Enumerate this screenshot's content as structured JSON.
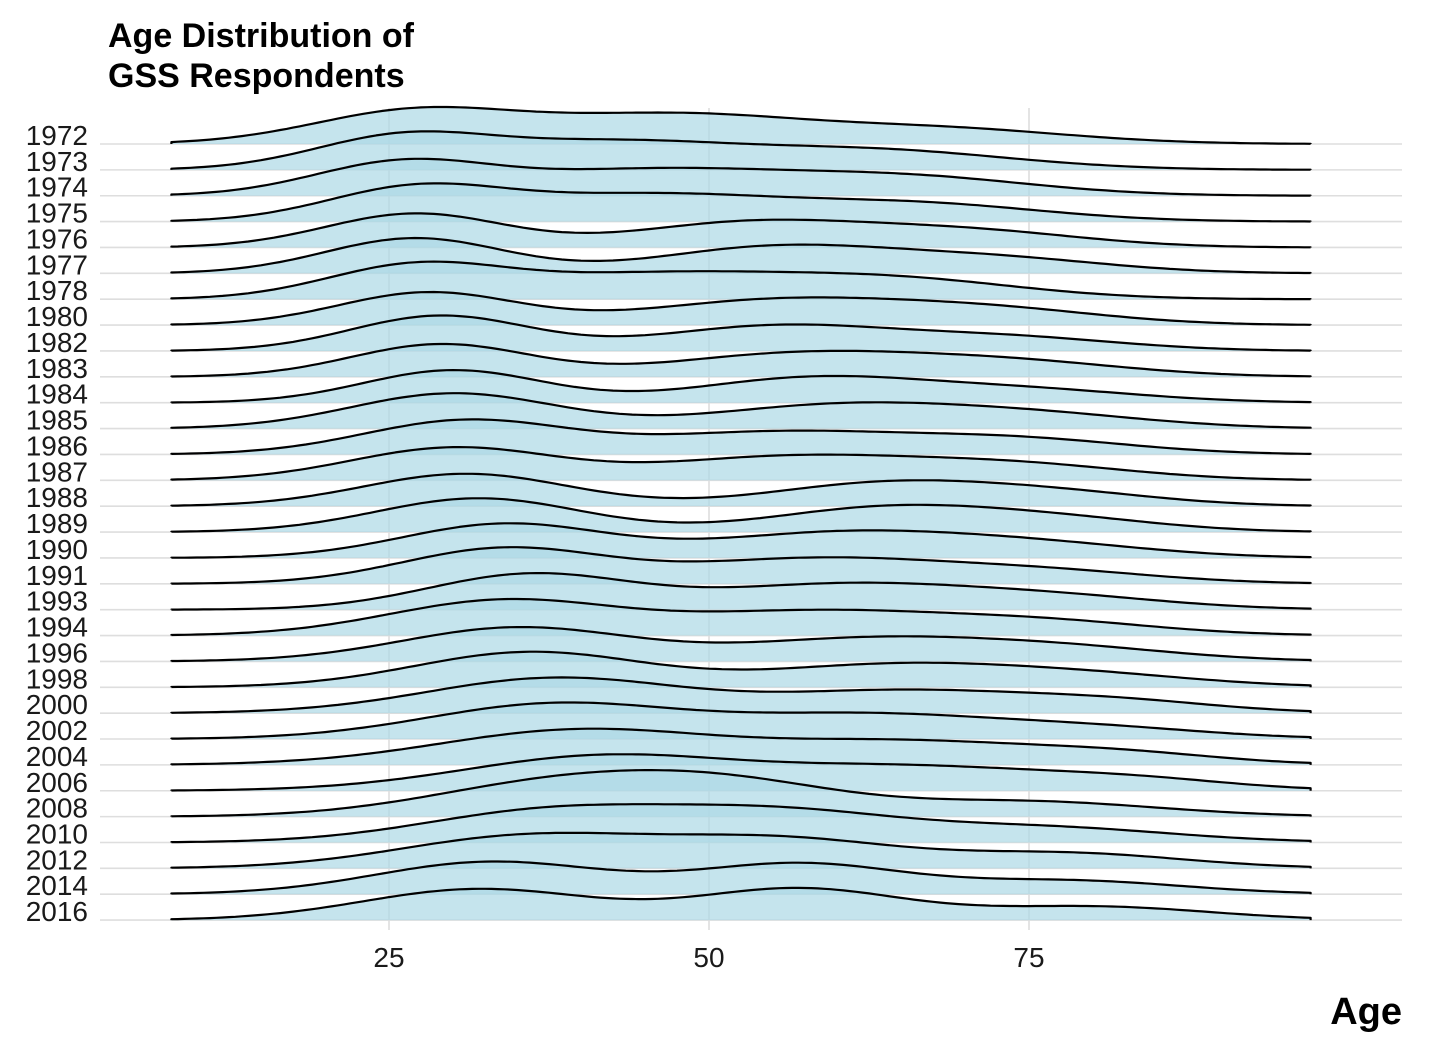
{
  "chart_data": {
    "type": "ridgeline",
    "title": [
      "Age Distribution of",
      "GSS Respondents"
    ],
    "xlabel": "Age",
    "ylabel": "",
    "x_ticks": [
      25,
      50,
      75
    ],
    "xlim": [
      3,
      100
    ],
    "density_range": [
      8,
      97
    ],
    "grid": true,
    "fill_color": "#add8e6",
    "fill_opacity": 0.7,
    "line_color": "#000000",
    "years": [
      "1972",
      "1973",
      "1974",
      "1975",
      "1976",
      "1977",
      "1978",
      "1980",
      "1982",
      "1983",
      "1984",
      "1985",
      "1986",
      "1987",
      "1988",
      "1989",
      "1990",
      "1991",
      "1993",
      "1994",
      "1996",
      "1998",
      "2000",
      "2002",
      "2004",
      "2006",
      "2008",
      "2010",
      "2012",
      "2014",
      "2016"
    ],
    "series": [
      {
        "label": "1972",
        "modes": [
          {
            "age": 27,
            "height": 1.2,
            "sd": 8
          },
          {
            "age": 47,
            "height": 1.05,
            "sd": 10
          },
          {
            "age": 68,
            "height": 0.55,
            "sd": 10
          }
        ]
      },
      {
        "label": "1973",
        "modes": [
          {
            "age": 26,
            "height": 1.2,
            "sd": 7
          },
          {
            "age": 42,
            "height": 0.9,
            "sd": 9
          },
          {
            "age": 62,
            "height": 0.75,
            "sd": 11
          }
        ]
      },
      {
        "label": "1974",
        "modes": [
          {
            "age": 26,
            "height": 1.2,
            "sd": 7
          },
          {
            "age": 45,
            "height": 0.9,
            "sd": 10
          },
          {
            "age": 65,
            "height": 0.7,
            "sd": 10
          }
        ]
      },
      {
        "label": "1975",
        "modes": [
          {
            "age": 27,
            "height": 1.2,
            "sd": 7
          },
          {
            "age": 45,
            "height": 0.95,
            "sd": 10
          },
          {
            "age": 66,
            "height": 0.65,
            "sd": 10
          }
        ]
      },
      {
        "label": "1976",
        "modes": [
          {
            "age": 27,
            "height": 1.25,
            "sd": 7
          },
          {
            "age": 53,
            "height": 0.9,
            "sd": 9
          },
          {
            "age": 70,
            "height": 0.6,
            "sd": 9
          }
        ]
      },
      {
        "label": "1977",
        "modes": [
          {
            "age": 27,
            "height": 1.3,
            "sd": 7
          },
          {
            "age": 55,
            "height": 0.95,
            "sd": 9
          },
          {
            "age": 72,
            "height": 0.55,
            "sd": 9
          }
        ]
      },
      {
        "label": "1978",
        "modes": [
          {
            "age": 27,
            "height": 1.2,
            "sd": 7
          },
          {
            "age": 45,
            "height": 0.85,
            "sd": 10
          },
          {
            "age": 64,
            "height": 0.75,
            "sd": 10
          }
        ]
      },
      {
        "label": "1980",
        "modes": [
          {
            "age": 28,
            "height": 1.2,
            "sd": 7
          },
          {
            "age": 55,
            "height": 0.9,
            "sd": 10
          },
          {
            "age": 72,
            "height": 0.55,
            "sd": 9
          }
        ]
      },
      {
        "label": "1982",
        "modes": [
          {
            "age": 29,
            "height": 1.3,
            "sd": 7
          },
          {
            "age": 55,
            "height": 0.9,
            "sd": 9
          },
          {
            "age": 73,
            "height": 0.5,
            "sd": 9
          }
        ]
      },
      {
        "label": "1983",
        "modes": [
          {
            "age": 29,
            "height": 1.2,
            "sd": 7
          },
          {
            "age": 57,
            "height": 0.85,
            "sd": 10
          },
          {
            "age": 74,
            "height": 0.5,
            "sd": 9
          }
        ]
      },
      {
        "label": "1984",
        "modes": [
          {
            "age": 30,
            "height": 1.2,
            "sd": 7
          },
          {
            "age": 58,
            "height": 0.9,
            "sd": 9
          },
          {
            "age": 75,
            "height": 0.45,
            "sd": 9
          }
        ]
      },
      {
        "label": "1985",
        "modes": [
          {
            "age": 30,
            "height": 1.3,
            "sd": 8
          },
          {
            "age": 60,
            "height": 0.85,
            "sd": 10
          },
          {
            "age": 76,
            "height": 0.45,
            "sd": 9
          }
        ]
      },
      {
        "label": "1986",
        "modes": [
          {
            "age": 31,
            "height": 1.25,
            "sd": 8
          },
          {
            "age": 55,
            "height": 0.8,
            "sd": 10
          },
          {
            "age": 74,
            "height": 0.55,
            "sd": 9
          }
        ]
      },
      {
        "label": "1987",
        "modes": [
          {
            "age": 30,
            "height": 1.2,
            "sd": 8
          },
          {
            "age": 56,
            "height": 0.85,
            "sd": 10
          },
          {
            "age": 74,
            "height": 0.55,
            "sd": 9
          }
        ]
      },
      {
        "label": "1988",
        "modes": [
          {
            "age": 31,
            "height": 1.2,
            "sd": 8
          },
          {
            "age": 64,
            "height": 0.85,
            "sd": 9
          },
          {
            "age": 78,
            "height": 0.4,
            "sd": 8
          }
        ]
      },
      {
        "label": "1989",
        "modes": [
          {
            "age": 32,
            "height": 1.25,
            "sd": 8
          },
          {
            "age": 64,
            "height": 0.9,
            "sd": 9
          },
          {
            "age": 78,
            "height": 0.4,
            "sd": 8
          }
        ]
      },
      {
        "label": "1990",
        "modes": [
          {
            "age": 34,
            "height": 1.25,
            "sd": 8
          },
          {
            "age": 60,
            "height": 0.9,
            "sd": 10
          },
          {
            "age": 76,
            "height": 0.45,
            "sd": 9
          }
        ]
      },
      {
        "label": "1991",
        "modes": [
          {
            "age": 34,
            "height": 1.3,
            "sd": 8
          },
          {
            "age": 58,
            "height": 0.9,
            "sd": 10
          },
          {
            "age": 76,
            "height": 0.45,
            "sd": 9
          }
        ]
      },
      {
        "label": "1993",
        "modes": [
          {
            "age": 36,
            "height": 1.3,
            "sd": 8
          },
          {
            "age": 60,
            "height": 0.9,
            "sd": 10
          },
          {
            "age": 77,
            "height": 0.45,
            "sd": 9
          }
        ]
      },
      {
        "label": "1994",
        "modes": [
          {
            "age": 34,
            "height": 1.3,
            "sd": 9
          },
          {
            "age": 58,
            "height": 0.85,
            "sd": 10
          },
          {
            "age": 76,
            "height": 0.5,
            "sd": 9
          }
        ]
      },
      {
        "label": "1996",
        "modes": [
          {
            "age": 35,
            "height": 1.25,
            "sd": 9
          },
          {
            "age": 62,
            "height": 0.8,
            "sd": 10
          },
          {
            "age": 78,
            "height": 0.45,
            "sd": 9
          }
        ]
      },
      {
        "label": "1998",
        "modes": [
          {
            "age": 36,
            "height": 1.3,
            "sd": 9
          },
          {
            "age": 64,
            "height": 0.8,
            "sd": 10
          },
          {
            "age": 80,
            "height": 0.4,
            "sd": 9
          }
        ]
      },
      {
        "label": "2000",
        "modes": [
          {
            "age": 38,
            "height": 1.3,
            "sd": 10
          },
          {
            "age": 65,
            "height": 0.8,
            "sd": 10
          },
          {
            "age": 82,
            "height": 0.4,
            "sd": 8
          }
        ]
      },
      {
        "label": "2002",
        "modes": [
          {
            "age": 38,
            "height": 1.3,
            "sd": 10
          },
          {
            "age": 62,
            "height": 0.85,
            "sd": 10
          },
          {
            "age": 80,
            "height": 0.4,
            "sd": 9
          }
        ]
      },
      {
        "label": "2004",
        "modes": [
          {
            "age": 40,
            "height": 1.3,
            "sd": 11
          },
          {
            "age": 65,
            "height": 0.8,
            "sd": 10
          },
          {
            "age": 82,
            "height": 0.4,
            "sd": 8
          }
        ]
      },
      {
        "label": "2006",
        "modes": [
          {
            "age": 42,
            "height": 1.3,
            "sd": 11
          },
          {
            "age": 66,
            "height": 0.8,
            "sd": 10
          },
          {
            "age": 83,
            "height": 0.4,
            "sd": 8
          }
        ]
      },
      {
        "label": "2008",
        "modes": [
          {
            "age": 38,
            "height": 1.2,
            "sd": 10
          },
          {
            "age": 52,
            "height": 1.05,
            "sd": 9
          },
          {
            "age": 75,
            "height": 0.55,
            "sd": 10
          }
        ]
      },
      {
        "label": "2010",
        "modes": [
          {
            "age": 38,
            "height": 1.2,
            "sd": 10
          },
          {
            "age": 56,
            "height": 1.0,
            "sd": 9
          },
          {
            "age": 76,
            "height": 0.55,
            "sd": 10
          }
        ]
      },
      {
        "label": "2012",
        "modes": [
          {
            "age": 36,
            "height": 1.2,
            "sd": 10
          },
          {
            "age": 56,
            "height": 1.0,
            "sd": 9
          },
          {
            "age": 78,
            "height": 0.55,
            "sd": 9
          }
        ]
      },
      {
        "label": "2014",
        "modes": [
          {
            "age": 33,
            "height": 1.2,
            "sd": 9
          },
          {
            "age": 57,
            "height": 1.1,
            "sd": 8
          },
          {
            "age": 78,
            "height": 0.5,
            "sd": 9
          }
        ]
      },
      {
        "label": "2016",
        "modes": [
          {
            "age": 32,
            "height": 1.15,
            "sd": 9
          },
          {
            "age": 57,
            "height": 1.15,
            "sd": 8
          },
          {
            "age": 80,
            "height": 0.5,
            "sd": 9
          }
        ]
      }
    ]
  }
}
